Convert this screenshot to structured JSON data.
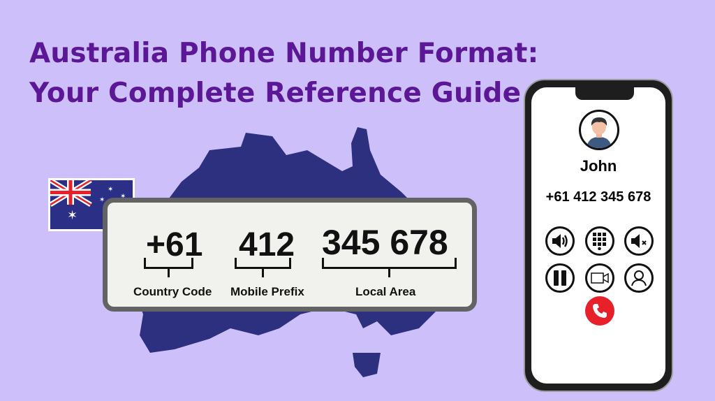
{
  "title": {
    "line1": "Australia Phone Number Format:",
    "line2": "Your Complete Reference Guide"
  },
  "colors": {
    "background": "#cdbffa",
    "title": "#5b1796",
    "map": "#2d2f7f",
    "end_call": "#e8202a"
  },
  "breakdown": {
    "parts": [
      {
        "value": "+61",
        "label": "Country Code"
      },
      {
        "value": "412",
        "label": "Mobile Prefix"
      },
      {
        "value": "345 678",
        "label": "Local Area"
      }
    ]
  },
  "phone": {
    "contact_name": "John",
    "number": "+61 412 345 678",
    "buttons": [
      "speaker-icon",
      "keypad-icon",
      "mute-icon",
      "hold-icon",
      "video-icon",
      "contact-icon",
      "end-call-icon"
    ]
  }
}
